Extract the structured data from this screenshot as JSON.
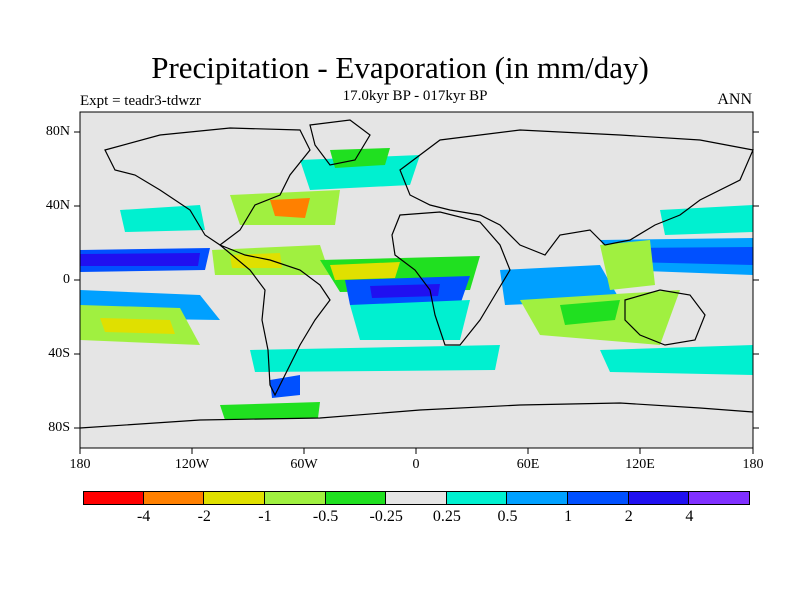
{
  "title": "Precipitation - Evaporation (in mm/day)",
  "subtitle": "17.0kyr BP - 017kyr BP",
  "experiment": "Expt = teadr3-tdwzr",
  "season": "ANN",
  "lat_labels": [
    "80N",
    "40N",
    "0",
    "40S",
    "80S"
  ],
  "lon_labels": [
    "180",
    "120W",
    "60W",
    "0",
    "60E",
    "120E",
    "180"
  ],
  "colorbar": {
    "labels": [
      "-4",
      "-2",
      "-1",
      "-0.5",
      "-0.25",
      "0.25",
      "0.5",
      "1",
      "2",
      "4"
    ],
    "colors": [
      "#ff0000",
      "#ff8000",
      "#e0e000",
      "#a0f040",
      "#20e020",
      "#e5e5e5",
      "#00f0d0",
      "#00a0ff",
      "#0050ff",
      "#2010f0",
      "#8030ff"
    ]
  },
  "map_colors": {
    "background": "#e5e5e5",
    "coast": "#000000"
  }
}
